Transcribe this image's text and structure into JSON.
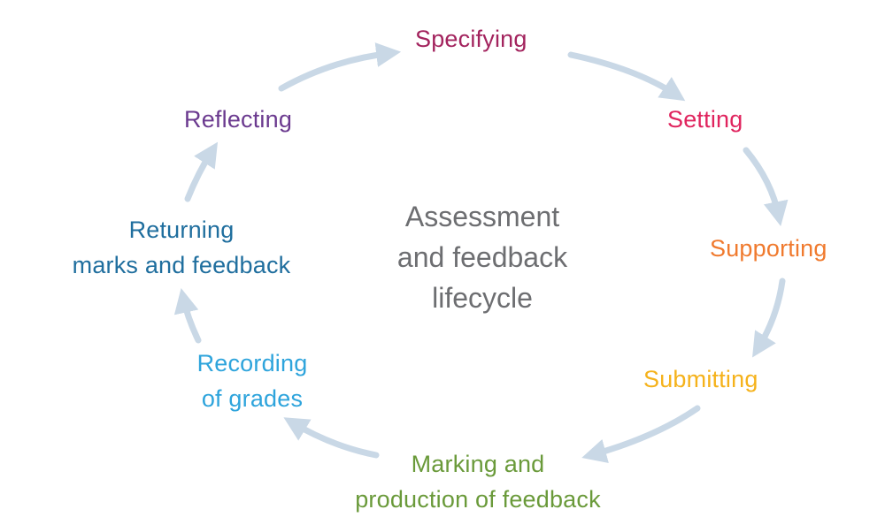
{
  "diagram": {
    "title_lines": [
      "Assessment",
      "and feedback",
      "lifecycle"
    ],
    "arrow_color": "#c9d8e6",
    "stages": [
      {
        "key": "specifying",
        "lines": [
          "Specifying"
        ],
        "color": "#a3245e"
      },
      {
        "key": "setting",
        "lines": [
          "Setting"
        ],
        "color": "#e0245e"
      },
      {
        "key": "supporting",
        "lines": [
          "Supporting"
        ],
        "color": "#f07a2e"
      },
      {
        "key": "submitting",
        "lines": [
          "Submitting"
        ],
        "color": "#f5b21b"
      },
      {
        "key": "marking",
        "lines": [
          "Marking and",
          "production of feedback"
        ],
        "color": "#6a9a3a"
      },
      {
        "key": "recording",
        "lines": [
          "Recording",
          "of grades"
        ],
        "color": "#2ea4dc"
      },
      {
        "key": "returning",
        "lines": [
          "Returning",
          "marks and feedback"
        ],
        "color": "#1f6e9e"
      },
      {
        "key": "reflecting",
        "lines": [
          "Reflecting"
        ],
        "color": "#6b3a8f"
      }
    ]
  }
}
